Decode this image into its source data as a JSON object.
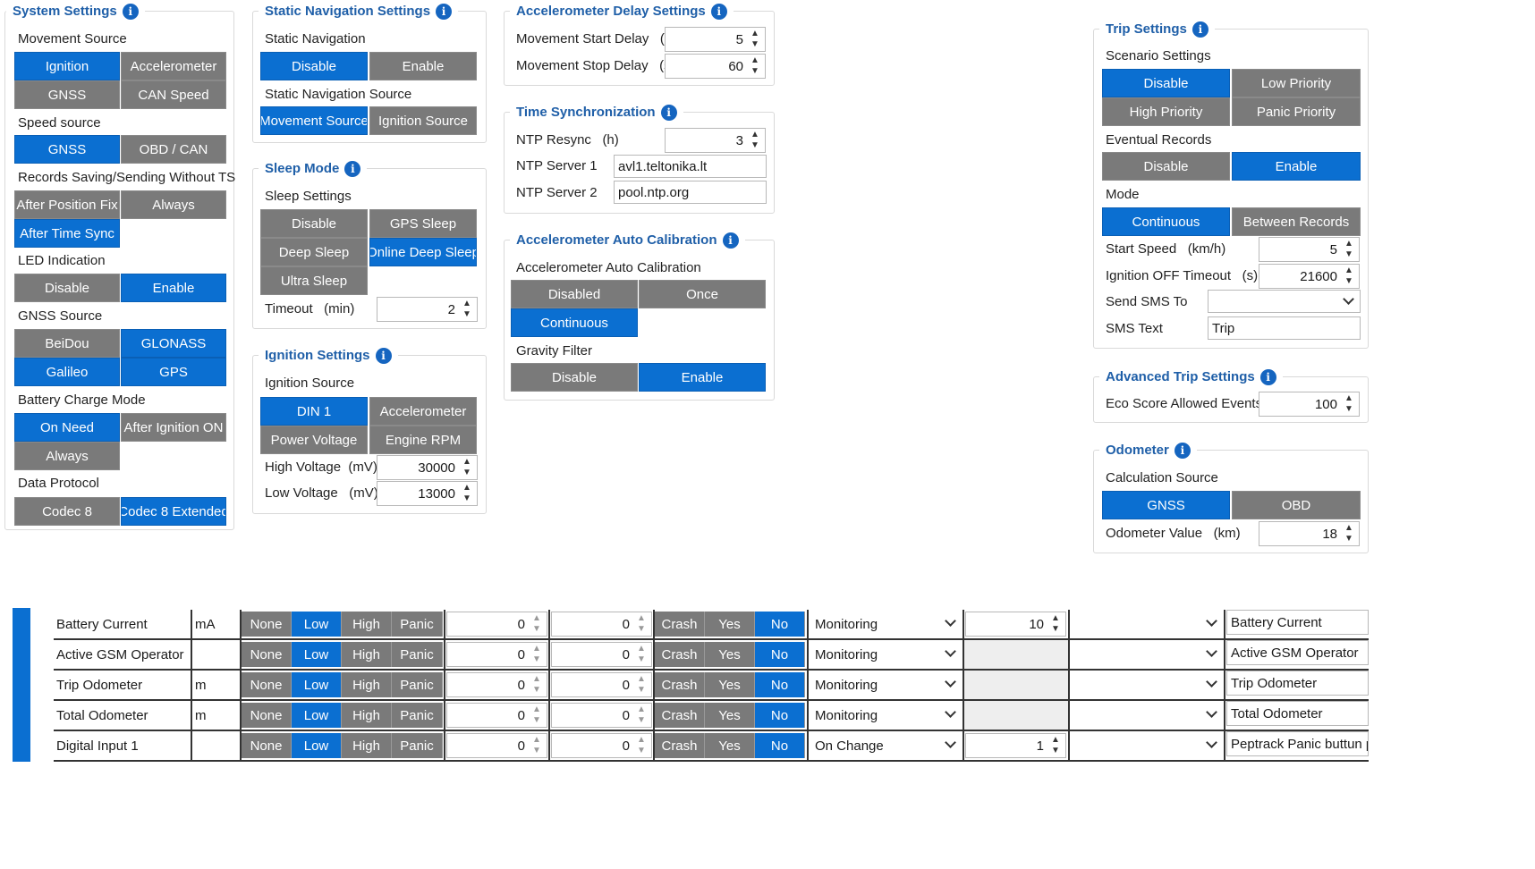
{
  "system": {
    "title": "System Settings",
    "movement_source": "Movement Source",
    "ms_opts": [
      "Ignition",
      "Accelerometer",
      "GNSS",
      "CAN Speed"
    ],
    "speed_source": "Speed source",
    "ss_opts": [
      "GNSS",
      "OBD / CAN"
    ],
    "records": "Records Saving/Sending Without TS",
    "rec_opts": [
      "After Position Fix",
      "Always",
      "After Time Sync"
    ],
    "led": "LED Indication",
    "led_opts": [
      "Disable",
      "Enable"
    ],
    "gnss_source": "GNSS Source",
    "gnss_opts": [
      "BeiDou",
      "GLONASS",
      "Galileo",
      "GPS"
    ],
    "battery": "Battery Charge Mode",
    "bat_opts": [
      "On Need",
      "After Ignition ON",
      "Always"
    ],
    "protocol": "Data Protocol",
    "proto_opts": [
      "Codec 8",
      "Codec 8 Extended"
    ]
  },
  "static_nav": {
    "title": "Static Navigation Settings",
    "sn_label": "Static Navigation",
    "sn_opts": [
      "Disable",
      "Enable"
    ],
    "src_label": "Static Navigation Source",
    "src_opts": [
      "Movement Source",
      "Ignition Source"
    ]
  },
  "sleep": {
    "title": "Sleep Mode",
    "settings": "Sleep Settings",
    "opts": [
      "Disable",
      "GPS Sleep",
      "Deep Sleep",
      "Online Deep Sleep",
      "Ultra Sleep"
    ],
    "timeout_label": "Timeout",
    "timeout_unit": "(min)",
    "timeout_value": "2"
  },
  "ignition": {
    "title": "Ignition Settings",
    "source": "Ignition Source",
    "opts": [
      "DIN 1",
      "Accelerometer",
      "Power Voltage",
      "Engine RPM"
    ],
    "high_label": "High Voltage",
    "high_unit": "(mV)",
    "high_value": "30000",
    "low_label": "Low Voltage",
    "low_unit": "(mV)",
    "low_value": "13000"
  },
  "accdelay": {
    "title": "Accelerometer Delay Settings",
    "start_label": "Movement Start Delay",
    "start_unit": "(s)",
    "start_value": "5",
    "stop_label": "Movement Stop Delay",
    "stop_unit": "(s)",
    "stop_value": "60"
  },
  "timesync": {
    "title": "Time Synchronization",
    "ntp_label": "NTP Resync",
    "ntp_unit": "(h)",
    "ntp_value": "3",
    "s1_label": "NTP Server 1",
    "s1_value": "avl1.teltonika.lt",
    "s2_label": "NTP Server 2",
    "s2_value": "pool.ntp.org"
  },
  "acccal": {
    "title": "Accelerometer Auto Calibration",
    "cal_label": "Accelerometer Auto Calibration",
    "cal_opts": [
      "Disabled",
      "Once",
      "Continuous"
    ],
    "grav_label": "Gravity Filter",
    "grav_opts": [
      "Disable",
      "Enable"
    ]
  },
  "trip": {
    "title": "Trip Settings",
    "scenario": "Scenario Settings",
    "sc_opts": [
      "Disable",
      "Low Priority",
      "High Priority",
      "Panic Priority"
    ],
    "eventual": "Eventual Records",
    "ev_opts": [
      "Disable",
      "Enable"
    ],
    "mode": "Mode",
    "mode_opts": [
      "Continuous",
      "Between Records"
    ],
    "speed_label": "Start Speed",
    "speed_unit": "(km/h)",
    "speed_value": "5",
    "ign_label": "Ignition OFF Timeout",
    "ign_unit": "(s)",
    "ign_value": "21600",
    "sms_to_label": "Send SMS To",
    "sms_to_value": "",
    "sms_text_label": "SMS Text",
    "sms_text_value": "Trip"
  },
  "advtrip": {
    "title": "Advanced Trip Settings",
    "eco_label": "Eco Score Allowed Events",
    "eco_value": "100"
  },
  "odometer": {
    "title": "Odometer",
    "calc": "Calculation Source",
    "calc_opts": [
      "GNSS",
      "OBD"
    ],
    "val_label": "Odometer Value",
    "val_unit": "(km)",
    "val_value": "18"
  },
  "table": {
    "priority": [
      "None",
      "Low",
      "High",
      "Panic"
    ],
    "gen": [
      "Crash",
      "Yes",
      "No"
    ],
    "rows": [
      {
        "name": "Battery Current",
        "unit": "mA",
        "low": "0",
        "high": "0",
        "operand": "Monitoring",
        "delta": "10",
        "sms": "Battery Current"
      },
      {
        "name": "Active GSM Operator",
        "unit": "",
        "low": "0",
        "high": "0",
        "operand": "Monitoring",
        "delta": "",
        "sms": "Active GSM Operator"
      },
      {
        "name": "Trip Odometer",
        "unit": "m",
        "low": "0",
        "high": "0",
        "operand": "Monitoring",
        "delta": "",
        "sms": "Trip Odometer"
      },
      {
        "name": "Total Odometer",
        "unit": "m",
        "low": "0",
        "high": "0",
        "operand": "Monitoring",
        "delta": "",
        "sms": "Total Odometer"
      },
      {
        "name": "Digital Input 1",
        "unit": "",
        "low": "0",
        "high": "0",
        "operand": "On Change",
        "delta": "1",
        "sms": "Peptrack Panic buttun pre"
      }
    ]
  }
}
